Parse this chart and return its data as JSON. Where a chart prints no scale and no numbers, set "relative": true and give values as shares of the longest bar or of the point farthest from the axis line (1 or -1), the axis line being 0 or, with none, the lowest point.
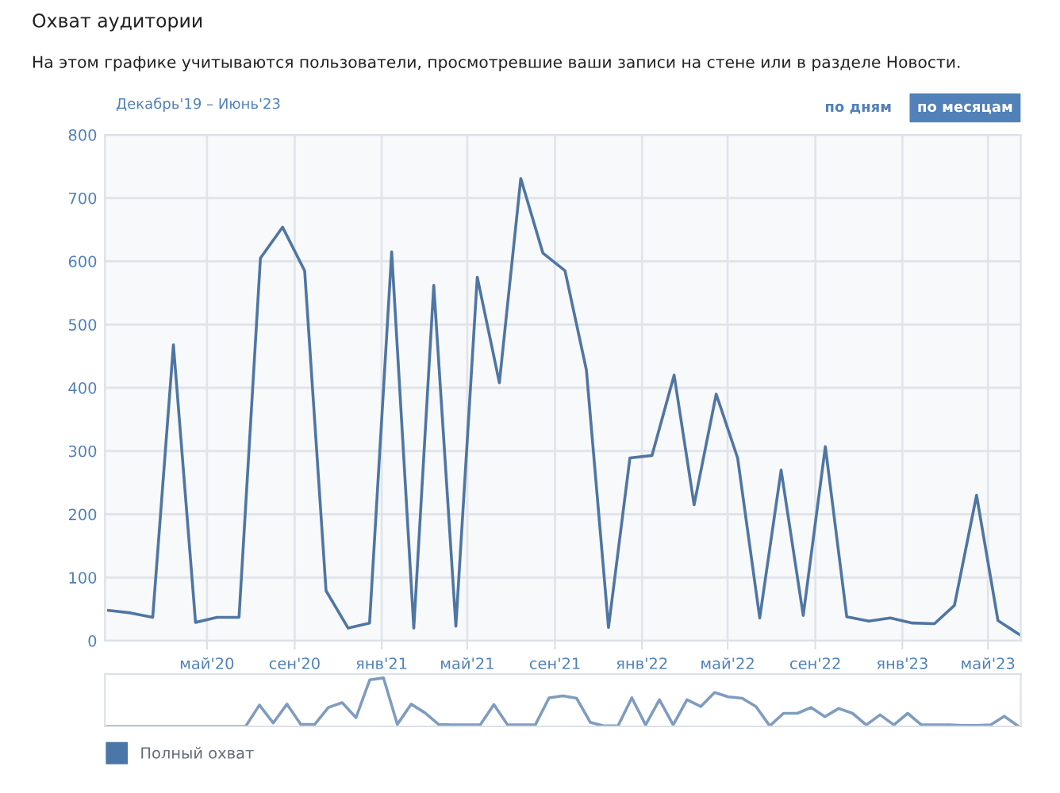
{
  "chart_data": [
    {
      "type": "line",
      "title": "Охват аудитории",
      "subtitle": "На этом графике учитываются пользователи, просмотревшие ваши записи на стене или в разделе Новости.",
      "annotations": [
        "Декабрь'19 – Июнь'23",
        "по дням",
        "по месяцам"
      ],
      "x": [
        "2019-12-15",
        "2020-01-15",
        "2020-02-15",
        "2020-03-15",
        "2020-04-15",
        "2020-05-15",
        "2020-06-15",
        "2020-07-15",
        "2020-08-15",
        "2020-09-15",
        "2020-10-15",
        "2020-11-15",
        "2020-12-15",
        "2021-01-15",
        "2021-02-15",
        "2021-03-15",
        "2021-04-15",
        "2021-05-15",
        "2021-06-15",
        "2021-07-15",
        "2021-08-15",
        "2021-09-15",
        "2021-10-15",
        "2021-11-15",
        "2021-12-15",
        "2022-01-15",
        "2022-02-15",
        "2022-03-15",
        "2022-04-15",
        "2022-05-15",
        "2022-06-15",
        "2022-07-15",
        "2022-08-15",
        "2022-09-15",
        "2022-10-15",
        "2022-11-15",
        "2022-12-15",
        "2023-01-15",
        "2023-02-15",
        "2023-03-15",
        "2023-04-15",
        "2023-05-15",
        "2023-06-15"
      ],
      "series": [
        {
          "name": "Полный охват",
          "color": "#4f76a3",
          "values": [
            48,
            44,
            37,
            468,
            29,
            37,
            37,
            605,
            654,
            585,
            79,
            20,
            28,
            615,
            20,
            562,
            23,
            575,
            408,
            731,
            613,
            585,
            428,
            21,
            289,
            293,
            420,
            215,
            390,
            289,
            36,
            270,
            40,
            307,
            38,
            31,
            36,
            28,
            27,
            56,
            230,
            32,
            9
          ]
        }
      ],
      "xlim": [
        "2019-12-10",
        "2023-06-16"
      ],
      "xticks": [
        {
          "value": "2020-05-01",
          "label": "май'20"
        },
        {
          "value": "2020-09-01",
          "label": "сен'20"
        },
        {
          "value": "2021-01-01",
          "label": "янв'21"
        },
        {
          "value": "2021-05-01",
          "label": "май'21"
        },
        {
          "value": "2021-09-01",
          "label": "сен'21"
        },
        {
          "value": "2022-01-01",
          "label": "янв'22"
        },
        {
          "value": "2022-05-01",
          "label": "май'22"
        },
        {
          "value": "2022-09-01",
          "label": "сен'22"
        },
        {
          "value": "2023-01-01",
          "label": "янв'23"
        },
        {
          "value": "2023-05-01",
          "label": "май'23"
        }
      ],
      "ylim": [
        0,
        800
      ],
      "yticks": [
        0,
        100,
        200,
        300,
        400,
        500,
        600,
        700,
        800
      ],
      "grid": true,
      "legend": "bottom left",
      "marker": "none",
      "line_style": "solid"
    },
    {
      "type": "line",
      "relative": true,
      "categories": [
        null,
        null,
        null,
        null,
        null,
        null,
        null,
        null,
        null,
        null,
        null,
        null,
        null,
        null,
        null,
        null,
        null,
        null,
        null,
        null,
        null,
        null,
        null,
        null,
        null,
        null,
        null,
        null,
        null,
        null,
        null,
        null,
        null,
        null,
        null,
        null,
        null,
        null,
        null,
        null,
        null,
        null,
        null,
        null,
        null,
        null,
        null,
        null,
        null,
        null,
        null,
        null,
        null,
        null,
        null,
        null,
        null,
        null,
        null,
        null,
        null,
        null,
        null,
        null,
        null,
        null,
        null
      ],
      "series": [
        {
          "color": "#7f9cc0",
          "values": [
            0,
            0,
            0,
            0,
            0,
            0,
            0,
            0,
            0,
            0,
            0,
            0.44,
            0.07,
            0.46,
            0.04,
            0.04,
            0.39,
            0.49,
            0.18,
            0.96,
            1,
            0.04,
            0.46,
            0.28,
            0.04,
            0.03,
            0.03,
            0.03,
            0.45,
            0.03,
            0.03,
            0.03,
            0.59,
            0.63,
            0.58,
            0.08,
            0.01,
            0.01,
            0.59,
            0.03,
            0.55,
            0.03,
            0.55,
            0.41,
            0.7,
            0.61,
            0.58,
            0.41,
            0.01,
            0.27,
            0.27,
            0.39,
            0.2,
            0.37,
            0.27,
            0.03,
            0.24,
            0.03,
            0.27,
            0.03,
            0.03,
            0.03,
            0.02,
            0.02,
            0.03,
            0.21,
            0.01
          ]
        }
      ],
      "tick_labels": false,
      "grid": false,
      "marker": "none",
      "line_style": "solid"
    }
  ]
}
